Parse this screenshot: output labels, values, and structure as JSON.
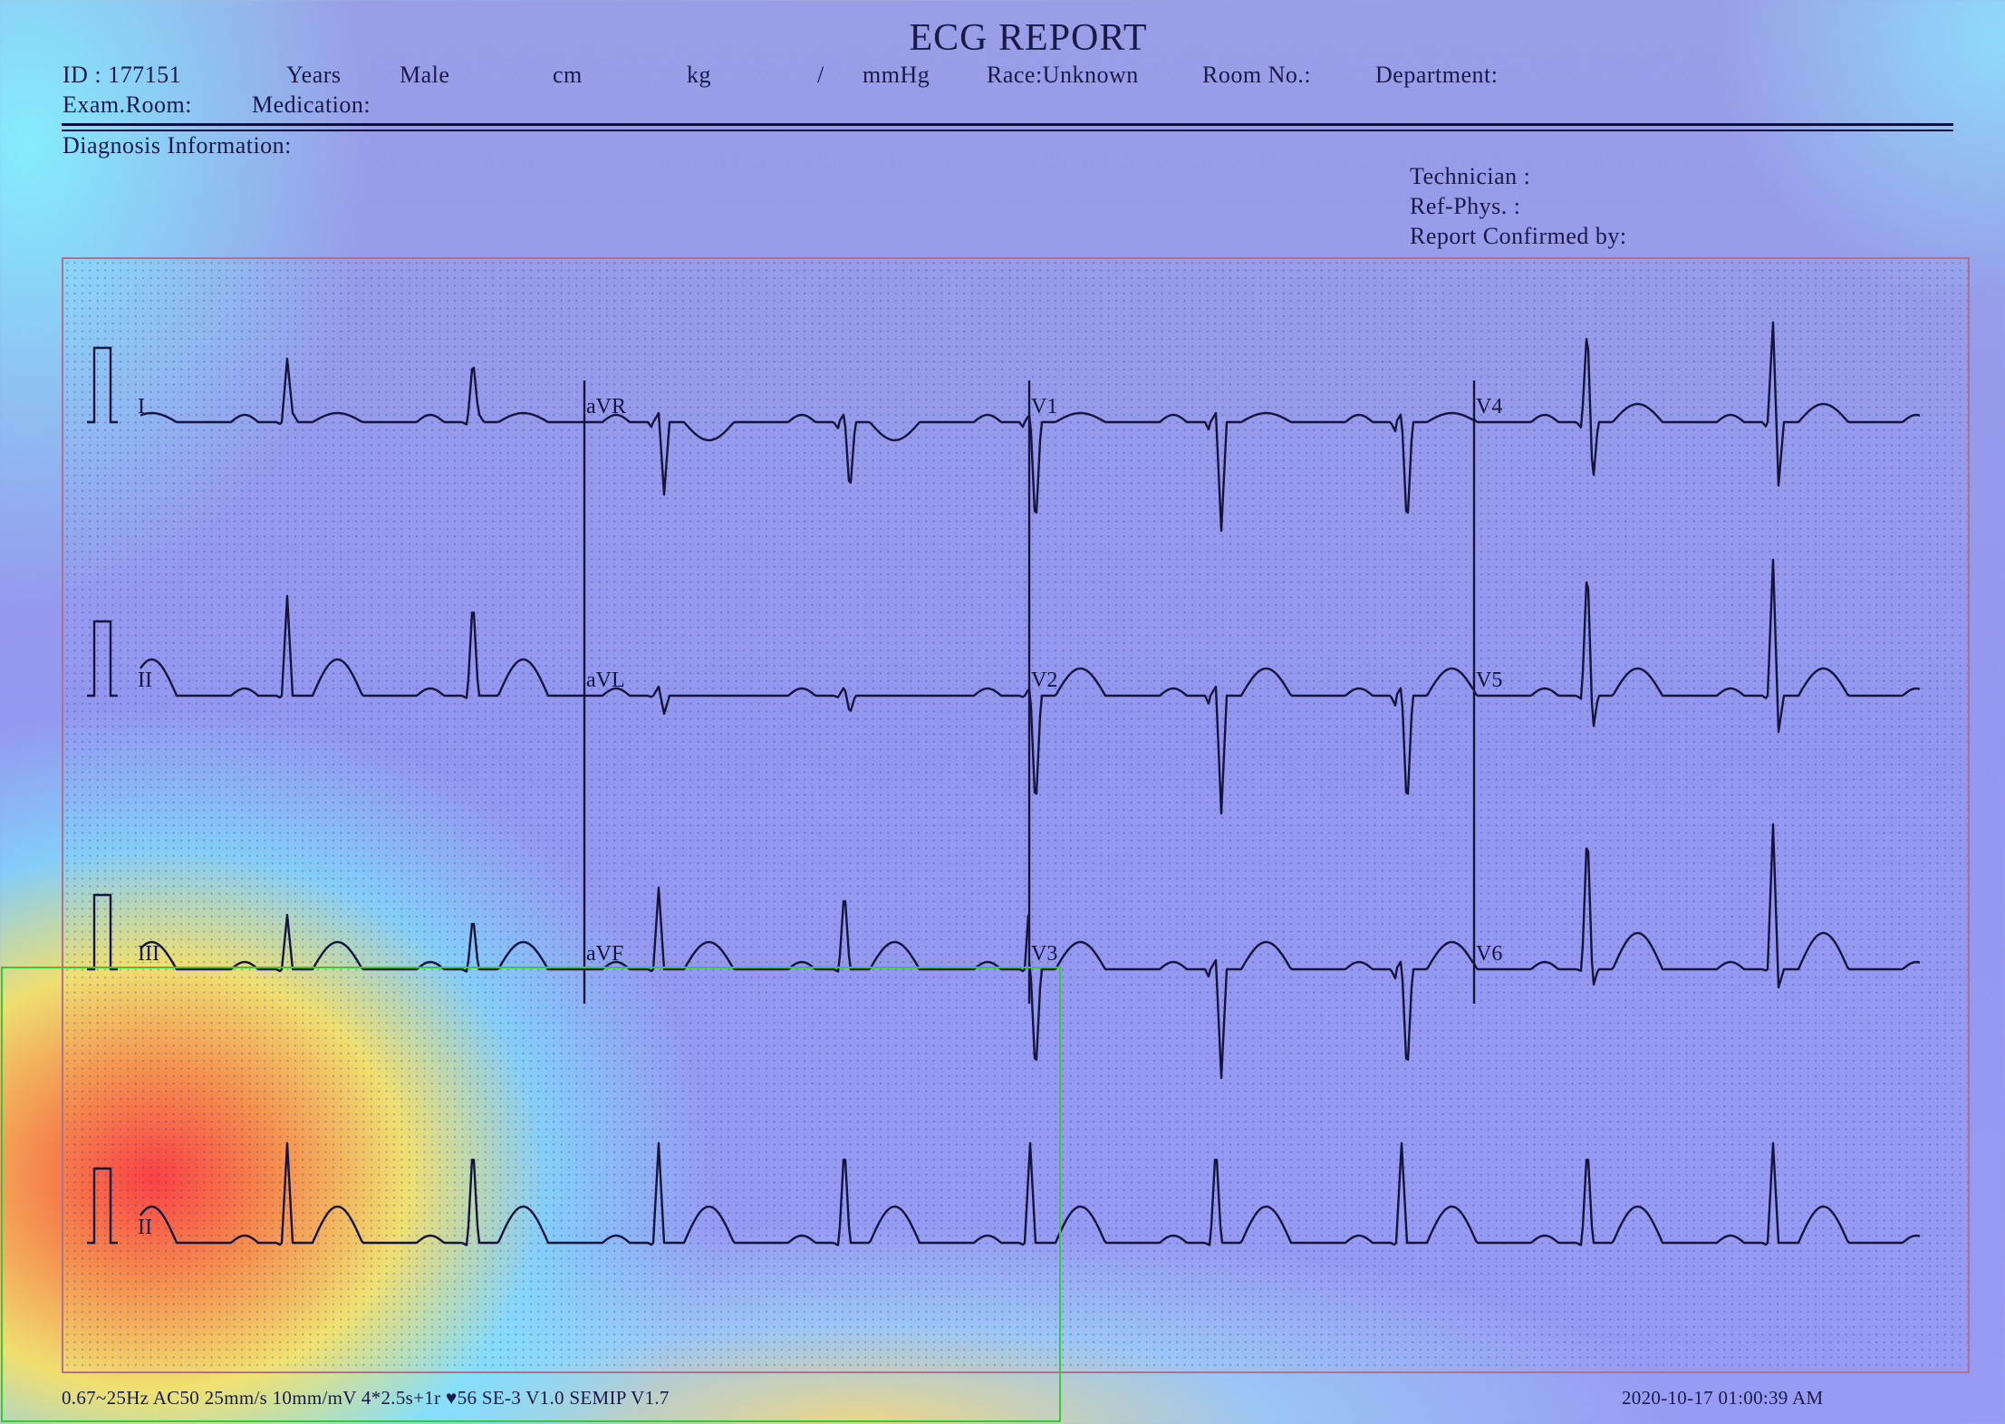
{
  "report": {
    "title": "ECG  REPORT",
    "id": "ID : 177151",
    "years": "Years",
    "sex": "Male",
    "cm": "cm",
    "kg": "kg",
    "slash": "/",
    "mmhg": "mmHg",
    "race": "Race:Unknown",
    "room": "Room  No.:",
    "department": "Department:",
    "exam_room": "Exam.Room:",
    "medication": "Medication:",
    "diagnosis": "Diagnosis  Information:",
    "technician": "Technician :",
    "ref_phys": "Ref-Phys. :",
    "confirmed": "Report  Confirmed  by:"
  },
  "footer": {
    "settings": "0.67~25Hz  AC50  25mm/s  10mm/mV  4*2.5s+1r  ♥56    SE-3  V1.0  SEMIP  V1.7",
    "datetime": "2020-10-17    01:00:39  AM"
  },
  "colors": {
    "trace": "#14143c",
    "grid_border": "#b07090",
    "selection": "#33cc33"
  },
  "chart_data": {
    "type": "line",
    "title": "",
    "layout": "4*2.5s+1r",
    "paper_speed": "25mm/s",
    "gain": "10mm/mV",
    "heart_rate": 56,
    "rows": [
      {
        "leads": [
          "I",
          "aVR",
          "V1",
          "V4"
        ]
      },
      {
        "leads": [
          "II",
          "aVL",
          "V2",
          "V5"
        ]
      },
      {
        "leads": [
          "III",
          "aVF",
          "V3",
          "V6"
        ]
      },
      {
        "leads": [
          "II"
        ],
        "rhythm_strip": true
      }
    ],
    "beats": [
      {
        "lead": "I",
        "r_amp": 0.35,
        "s_amp": 0.05,
        "t_amp": 0.05
      },
      {
        "lead": "aVR",
        "r_amp": 0.05,
        "s_amp": -0.4,
        "t_amp": -0.1
      },
      {
        "lead": "V1",
        "r_amp": 0.05,
        "s_amp": -0.6,
        "t_amp": 0.05
      },
      {
        "lead": "V4",
        "r_amp": 0.55,
        "s_amp": -0.35,
        "t_amp": 0.1
      },
      {
        "lead": "II",
        "r_amp": 0.55,
        "s_amp": 0.0,
        "t_amp": 0.2
      },
      {
        "lead": "aVL",
        "r_amp": 0.05,
        "s_amp": -0.1,
        "t_amp": 0.0
      },
      {
        "lead": "V2",
        "r_amp": 0.05,
        "s_amp": -0.65,
        "t_amp": 0.15
      },
      {
        "lead": "V5",
        "r_amp": 0.75,
        "s_amp": -0.2,
        "t_amp": 0.15
      },
      {
        "lead": "III",
        "r_amp": 0.3,
        "s_amp": 0.0,
        "t_amp": 0.15
      },
      {
        "lead": "aVF",
        "r_amp": 0.45,
        "s_amp": 0.0,
        "t_amp": 0.15
      },
      {
        "lead": "V3",
        "r_amp": 0.05,
        "s_amp": -0.6,
        "t_amp": 0.15
      },
      {
        "lead": "V6",
        "r_amp": 0.8,
        "s_amp": -0.1,
        "t_amp": 0.2
      }
    ]
  }
}
